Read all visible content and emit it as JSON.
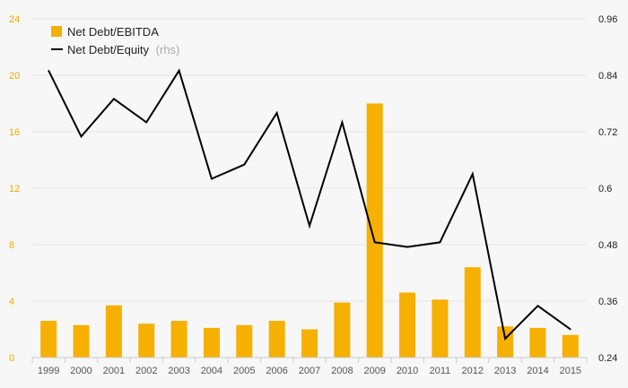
{
  "chart_data": {
    "type": "bar",
    "categories": [
      "1999",
      "2000",
      "2001",
      "2002",
      "2003",
      "2004",
      "2005",
      "2006",
      "2007",
      "2008",
      "2009",
      "2010",
      "2011",
      "2012",
      "2013",
      "2014",
      "2015"
    ],
    "series": [
      {
        "name": "Net Debt/EBITDA",
        "type": "bar",
        "axis": "left",
        "color": "#f5b000",
        "values": [
          2.6,
          2.3,
          3.7,
          2.4,
          2.6,
          2.1,
          2.3,
          2.6,
          2.0,
          3.9,
          18.0,
          4.6,
          4.1,
          6.4,
          2.2,
          2.1,
          1.6
        ]
      },
      {
        "name": "Net Debt/Equity",
        "note": "(rhs)",
        "type": "line",
        "axis": "right",
        "color": "#000000",
        "values": [
          0.85,
          0.71,
          0.79,
          0.74,
          0.85,
          0.62,
          0.65,
          0.76,
          0.52,
          0.74,
          0.485,
          0.475,
          0.485,
          0.63,
          0.28,
          0.35,
          0.3
        ]
      }
    ],
    "y_left": {
      "min": 0,
      "max": 24,
      "ticks": [
        "0",
        "4",
        "8",
        "12",
        "16",
        "20",
        "24"
      ]
    },
    "y_right": {
      "min": 0.24,
      "max": 0.96,
      "ticks": [
        "0.24",
        "0.36",
        "0.48",
        "0.6",
        "0.72",
        "0.84",
        "0.96"
      ]
    },
    "grid": true,
    "legend_position": "top-left"
  }
}
